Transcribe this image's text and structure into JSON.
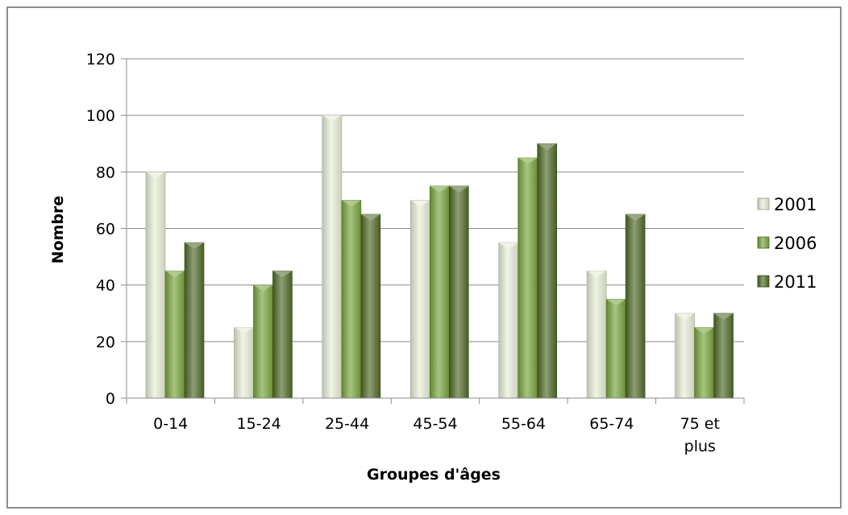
{
  "chart_data": {
    "type": "bar",
    "title": "",
    "xlabel": "Groupes d'âges",
    "ylabel": "Nombre",
    "categories": [
      [
        "0-14"
      ],
      [
        "15-24"
      ],
      [
        "25-44"
      ],
      [
        "45-54"
      ],
      [
        "55-64"
      ],
      [
        "65-74"
      ],
      [
        "75 et",
        "plus"
      ]
    ],
    "series": [
      {
        "name": "2001",
        "color": "#e6eed6",
        "values": [
          80,
          25,
          100,
          70,
          55,
          45,
          30
        ]
      },
      {
        "name": "2006",
        "color": "#77a43c",
        "values": [
          45,
          40,
          70,
          75,
          85,
          35,
          25
        ]
      },
      {
        "name": "2011",
        "color": "#4f6a28",
        "values": [
          55,
          45,
          65,
          75,
          90,
          65,
          30
        ]
      }
    ],
    "ylim": [
      0,
      120
    ],
    "yticks": [
      0,
      20,
      40,
      60,
      80,
      100,
      120
    ],
    "grid": true,
    "legend": "right"
  }
}
